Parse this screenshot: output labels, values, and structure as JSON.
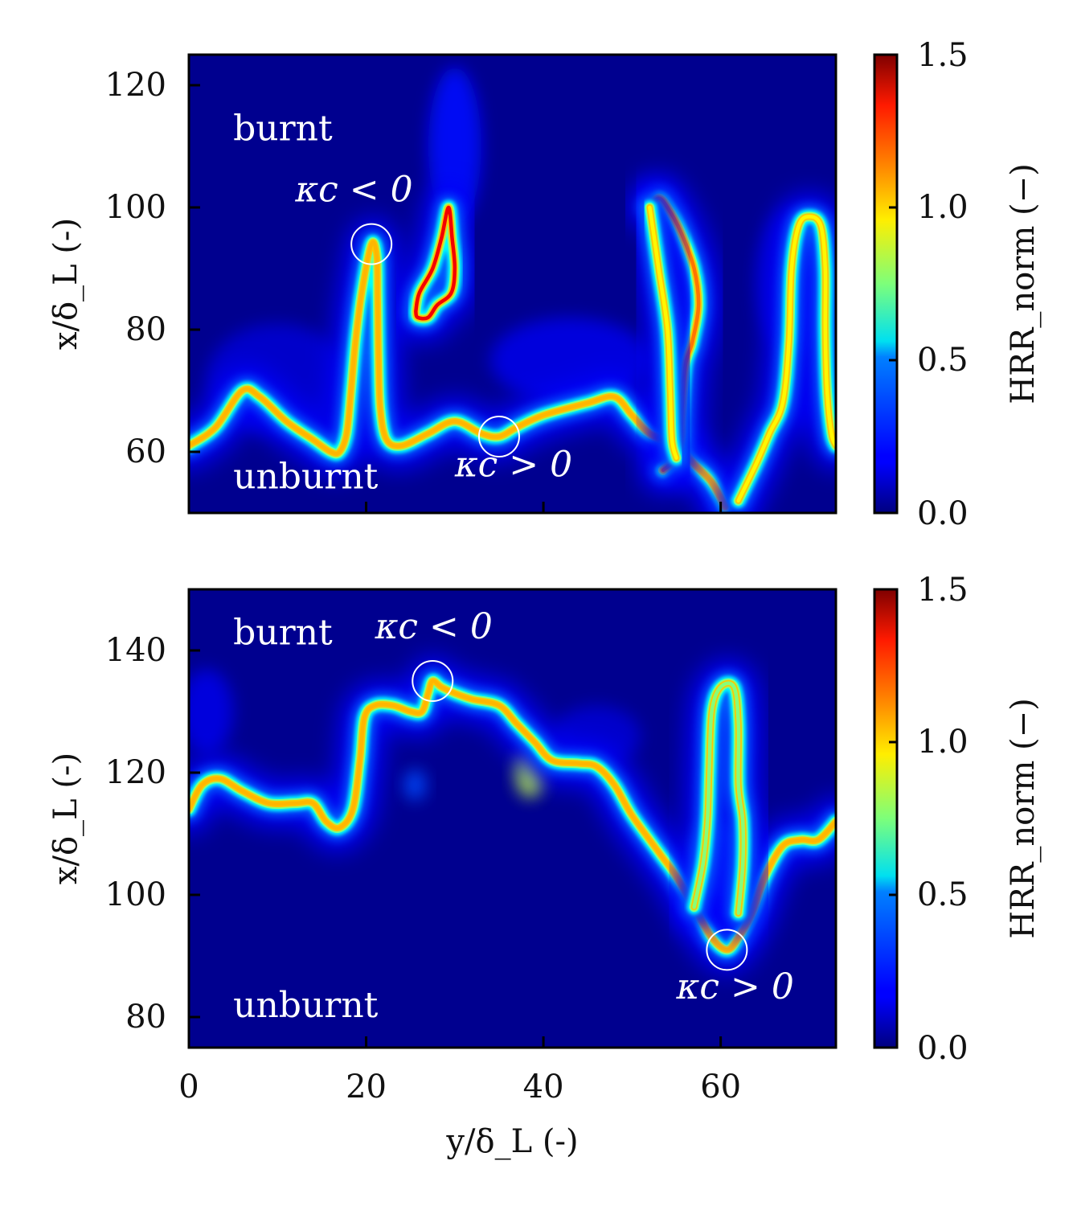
{
  "chart_data": [
    {
      "type": "heatmap",
      "panel": "top",
      "xlabel": "y/δ_L (-)",
      "ylabel": "x/δ_L (-)",
      "xlim": [
        0,
        73
      ],
      "ylim": [
        50,
        125
      ],
      "xticks": [
        0,
        20,
        40,
        60
      ],
      "yticks": [
        60,
        80,
        100,
        120
      ],
      "colorbar": {
        "label": "HRR_norm (−)",
        "min": 0.0,
        "max": 1.5,
        "ticks": [
          "0.0",
          "0.5",
          "1.0",
          "1.5"
        ],
        "colormap": "jet"
      },
      "region_labels": [
        {
          "text": "burnt",
          "x": 5,
          "y": 111
        },
        {
          "text": "unburnt",
          "x": 5,
          "y": 54
        }
      ],
      "annotations": [
        {
          "text": "κc < 0",
          "x": 20.6,
          "y": 94,
          "label_x": 12,
          "label_y": 101
        },
        {
          "text": "κc > 0",
          "x": 35,
          "y": 62.5,
          "label_x": 30,
          "label_y": 56
        }
      ],
      "flame_fronts": [
        {
          "hrr": 1.1,
          "points": [
            [
              0,
              61
            ],
            [
              3,
              64
            ],
            [
              6,
              70
            ],
            [
              8,
              69
            ],
            [
              11,
              65
            ],
            [
              14,
              62
            ],
            [
              16,
              60
            ],
            [
              17,
              60
            ],
            [
              17.8,
              63
            ],
            [
              18.3,
              70
            ],
            [
              18.8,
              78
            ],
            [
              19.5,
              86
            ],
            [
              20.6,
              94
            ],
            [
              21.2,
              92
            ],
            [
              21.3,
              85
            ],
            [
              21.4,
              75
            ],
            [
              21.6,
              67
            ],
            [
              22.3,
              62
            ],
            [
              24,
              61
            ],
            [
              27,
              63
            ],
            [
              30,
              65
            ],
            [
              33,
              63
            ],
            [
              35,
              62.5
            ],
            [
              37,
              64
            ],
            [
              40,
              66
            ],
            [
              45,
              68
            ],
            [
              48,
              69
            ],
            [
              50,
              66
            ],
            [
              52,
              63
            ],
            [
              55,
              61
            ],
            [
              57,
              58
            ],
            [
              59,
              55
            ],
            [
              60.5,
              51
            ]
          ]
        },
        {
          "hrr": 1.4,
          "points": [
            [
              25.6,
              83
            ],
            [
              26,
              86
            ],
            [
              27.5,
              90
            ],
            [
              28.5,
              95
            ],
            [
              29.3,
              100
            ],
            [
              29.7,
              95
            ],
            [
              30,
              90
            ],
            [
              29.6,
              86
            ],
            [
              28,
              84
            ],
            [
              27,
              82
            ],
            [
              25.8,
              82
            ],
            [
              25.6,
              83
            ]
          ]
        },
        {
          "hrr": 1.2,
          "points": [
            [
              52,
              100
            ],
            [
              53,
              101.5
            ],
            [
              54,
              100
            ],
            [
              55.5,
              96
            ],
            [
              57,
              90
            ],
            [
              57.5,
              84
            ],
            [
              56.8,
              78
            ],
            [
              56,
              74
            ],
            [
              55.6,
              66
            ],
            [
              55.5,
              62
            ],
            [
              55,
              59
            ],
            [
              53.5,
              57
            ]
          ]
        },
        {
          "hrr": 1.0,
          "points": [
            [
              52,
              100
            ],
            [
              53,
              90
            ],
            [
              54,
              80
            ],
            [
              54.3,
              70
            ],
            [
              54.5,
              62
            ],
            [
              55,
              59
            ]
          ]
        },
        {
          "hrr": 1.0,
          "points": [
            [
              62,
              52
            ],
            [
              64,
              58
            ],
            [
              65.5,
              63
            ],
            [
              67,
              68
            ],
            [
              67.7,
              78
            ],
            [
              68,
              90
            ],
            [
              68.8,
              97
            ],
            [
              70,
              98.5
            ],
            [
              71.3,
              97
            ],
            [
              71.8,
              90
            ],
            [
              71.8,
              80
            ],
            [
              72,
              70
            ],
            [
              72.5,
              63
            ],
            [
              73,
              61
            ]
          ]
        }
      ],
      "glows": [
        {
          "hrr": 0.2,
          "x": 30,
          "y": 110,
          "rx": 3,
          "ry": 13
        },
        {
          "hrr": 0.15,
          "x": 43,
          "y": 75,
          "rx": 9,
          "ry": 7
        },
        {
          "hrr": 0.12,
          "x": 10,
          "y": 72,
          "rx": 8,
          "ry": 9
        },
        {
          "hrr": 0.12,
          "x": 68,
          "y": 88,
          "rx": 4,
          "ry": 12
        }
      ]
    },
    {
      "type": "heatmap",
      "panel": "bottom",
      "xlabel": "y/δ_L (-)",
      "ylabel": "x/δ_L (-)",
      "xlim": [
        0,
        73
      ],
      "ylim": [
        75,
        150
      ],
      "xticks": [
        0,
        20,
        40,
        60
      ],
      "yticks": [
        80,
        100,
        120,
        140
      ],
      "colorbar": {
        "label": "HRR_norm (−)",
        "min": 0.0,
        "max": 1.5,
        "ticks": [
          "0.0",
          "0.5",
          "1.0",
          "1.5"
        ],
        "colormap": "jet"
      },
      "region_labels": [
        {
          "text": "burnt",
          "x": 5,
          "y": 141
        },
        {
          "text": "unburnt",
          "x": 5,
          "y": 80
        }
      ],
      "annotations": [
        {
          "text": "κc < 0",
          "x": 27.5,
          "y": 135,
          "label_x": 21,
          "label_y": 142
        },
        {
          "text": "κc > 0",
          "x": 60.7,
          "y": 91,
          "label_x": 55,
          "label_y": 83
        }
      ],
      "flame_fronts": [
        {
          "hrr": 1.1,
          "points": [
            [
              0,
              114
            ],
            [
              1.5,
              118
            ],
            [
              3.5,
              119
            ],
            [
              6,
              117
            ],
            [
              9,
              115
            ],
            [
              12,
              115
            ],
            [
              14,
              115
            ],
            [
              15.5,
              112
            ],
            [
              17,
              111
            ],
            [
              18.5,
              114
            ],
            [
              19.3,
              122
            ],
            [
              19.8,
              129
            ],
            [
              21,
              131
            ],
            [
              23,
              131
            ],
            [
              25,
              130
            ],
            [
              26.3,
              130
            ],
            [
              27,
              133
            ],
            [
              27.5,
              135
            ],
            [
              28.5,
              134
            ],
            [
              30,
              133
            ],
            [
              32,
              132
            ],
            [
              35,
              131
            ],
            [
              37,
              128
            ],
            [
              39,
              125
            ],
            [
              41,
              122
            ],
            [
              44,
              121.5
            ],
            [
              46,
              121
            ],
            [
              48,
              118
            ],
            [
              50,
              113
            ],
            [
              53,
              107
            ],
            [
              55,
              103
            ],
            [
              57,
              98
            ],
            [
              59,
              93
            ],
            [
              60.7,
              91
            ],
            [
              62,
              93
            ],
            [
              63.5,
              97
            ],
            [
              65,
              103
            ],
            [
              67,
              108
            ],
            [
              69,
              109
            ],
            [
              71,
              109
            ],
            [
              73,
              112
            ]
          ]
        },
        {
          "hrr": 0.8,
          "points": [
            [
              57,
              98
            ],
            [
              58,
              105
            ],
            [
              58.5,
              112
            ],
            [
              58.7,
              120
            ],
            [
              59,
              130
            ],
            [
              60,
              134
            ],
            [
              61.5,
              134
            ],
            [
              62,
              128
            ],
            [
              62,
              118
            ],
            [
              62.5,
              112
            ],
            [
              62.5,
              105
            ],
            [
              62,
              97
            ]
          ]
        }
      ],
      "glows": [
        {
          "hrr": 0.85,
          "x": 38.5,
          "y": 120,
          "rx": 1.6,
          "ry": 4
        },
        {
          "hrr": 0.55,
          "x": 60,
          "y": 105,
          "rx": 3.5,
          "ry": 7
        },
        {
          "hrr": 0.3,
          "x": 25.5,
          "y": 118,
          "rx": 1.2,
          "ry": 2.5
        },
        {
          "hrr": 0.15,
          "x": 2,
          "y": 130,
          "rx": 3,
          "ry": 7
        },
        {
          "hrr": 0.12,
          "x": 46,
          "y": 126,
          "rx": 5,
          "ry": 5
        }
      ]
    }
  ]
}
